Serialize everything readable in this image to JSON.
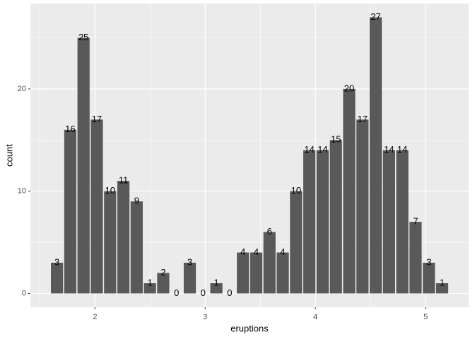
{
  "chart_data": {
    "type": "histogram",
    "x_label": "eruptions",
    "y_label": "count",
    "bins": [
      1.595,
      1.7155,
      1.836,
      1.9565,
      2.077,
      2.1975,
      2.318,
      2.4385,
      2.559,
      2.6795,
      2.8,
      2.9205,
      3.041,
      3.1615,
      3.282,
      3.4025,
      3.523,
      3.6435,
      3.764,
      3.8845,
      4.005,
      4.1255,
      4.246,
      4.3665,
      4.487,
      4.6075,
      4.728,
      4.8485,
      4.969,
      5.0895,
      5.21
    ],
    "values": [
      3,
      16,
      25,
      17,
      10,
      11,
      9,
      1,
      2,
      0,
      3,
      0,
      1,
      0,
      4,
      4,
      6,
      4,
      10,
      14,
      14,
      15,
      20,
      17,
      27,
      14,
      14,
      7,
      3,
      1
    ],
    "color": "#595959",
    "xlim": [
      1.414,
      5.39
    ],
    "ylim": [
      -1.35,
      28.35
    ],
    "xticks": [
      2,
      3,
      4,
      5
    ],
    "yticks": [
      0,
      10,
      20
    ],
    "xminor": [
      1.5,
      2.5,
      3.5,
      4.5
    ],
    "yminor": [
      5,
      15,
      25
    ],
    "grid": true
  }
}
